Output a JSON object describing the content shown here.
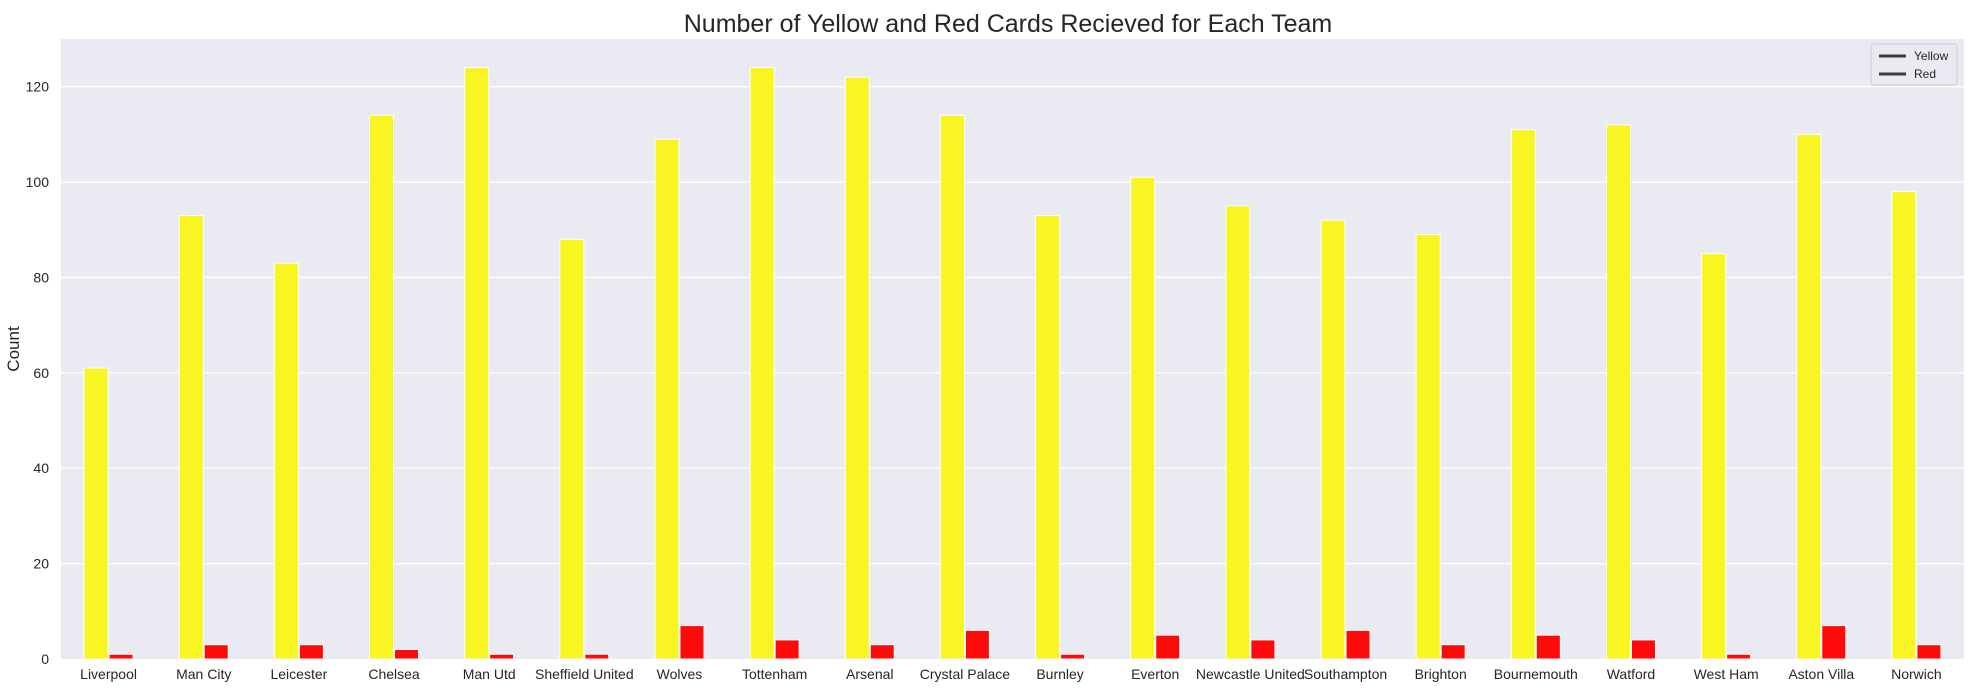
{
  "chart_data": {
    "type": "bar",
    "title": "Number of Yellow and Red Cards Recieved for Each Team",
    "xlabel": "",
    "ylabel": "Count",
    "ylim": [
      0,
      130
    ],
    "yticks": [
      0,
      20,
      40,
      60,
      80,
      100,
      120
    ],
    "grid": true,
    "legend_position": "top-right",
    "categories": [
      "Liverpool",
      "Man City",
      "Leicester",
      "Chelsea",
      "Man Utd",
      "Sheffield United",
      "Wolves",
      "Tottenham",
      "Arsenal",
      "Crystal Palace",
      "Burnley",
      "Everton",
      "Newcastle United",
      "Southampton",
      "Brighton",
      "Bournemouth",
      "Watford",
      "West Ham",
      "Aston Villa",
      "Norwich"
    ],
    "series": [
      {
        "name": "Yellow",
        "color": "#f8f523",
        "values": [
          61,
          93,
          83,
          114,
          124,
          88,
          109,
          124,
          122,
          114,
          93,
          101,
          95,
          92,
          89,
          111,
          112,
          85,
          110,
          98
        ]
      },
      {
        "name": "Red",
        "color": "#ff0a0a",
        "values": [
          1,
          3,
          3,
          2,
          1,
          1,
          7,
          4,
          3,
          6,
          1,
          5,
          4,
          6,
          3,
          5,
          4,
          1,
          7,
          3
        ]
      }
    ]
  },
  "colors": {
    "plot_background": "#eaeaf2",
    "grid": "#ffffff",
    "legend_line": "#3d3d3d"
  }
}
